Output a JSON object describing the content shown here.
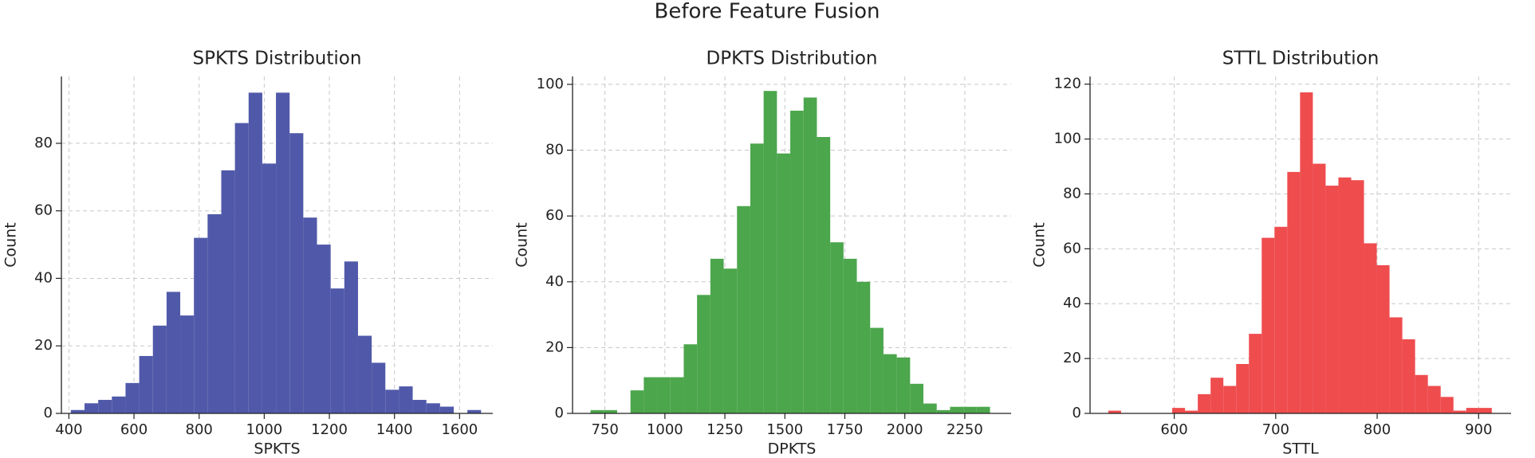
{
  "title": "Before Feature Fusion",
  "chart_data": [
    {
      "type": "histogram",
      "title": "SPKTS Distribution",
      "xlabel": "SPKTS",
      "ylabel": "Count",
      "color": "#5059a9",
      "grid": true,
      "bins": [
        406,
        448,
        490,
        532,
        574,
        616,
        658,
        700,
        742,
        784,
        826,
        868,
        910,
        952,
        994,
        1036,
        1078,
        1120,
        1162,
        1204,
        1246,
        1288,
        1330,
        1372,
        1414,
        1456,
        1498,
        1540,
        1582,
        1624,
        1666
      ],
      "values": [
        1,
        3,
        4,
        5,
        9,
        17,
        26,
        36,
        29,
        52,
        59,
        72,
        86,
        95,
        74,
        95,
        83,
        58,
        50,
        37,
        45,
        23,
        15,
        7,
        8,
        4,
        3,
        2,
        0,
        1
      ],
      "xlim": [
        377,
        1702
      ],
      "ylim": [
        0,
        99.8
      ],
      "xticks": [
        400,
        600,
        800,
        1000,
        1200,
        1400,
        1600
      ],
      "yticks": [
        0,
        20,
        40,
        60,
        80
      ]
    },
    {
      "type": "histogram",
      "title": "DPKTS Distribution",
      "xlabel": "DPKTS",
      "ylabel": "Count",
      "color": "#4ca64c",
      "grid": true,
      "bins": [
        690,
        745.5,
        801,
        856.5,
        912,
        967.5,
        1023,
        1078.5,
        1134,
        1189.5,
        1245,
        1300.5,
        1356,
        1411.5,
        1467,
        1522.5,
        1578,
        1633.5,
        1689,
        1744.5,
        1800,
        1855.5,
        1911,
        1966.5,
        2022,
        2077.5,
        2133,
        2188.5,
        2244,
        2299.5,
        2355
      ],
      "values": [
        1,
        1,
        0,
        7,
        11,
        11,
        11,
        21,
        36,
        47,
        44,
        63,
        82,
        98,
        79,
        92,
        96,
        84,
        52,
        47,
        40,
        26,
        18,
        17,
        9,
        3,
        1,
        2,
        2,
        2
      ],
      "xlim": [
        615,
        2443
      ],
      "ylim": [
        0,
        102.4
      ],
      "xticks": [
        750,
        1000,
        1250,
        1500,
        1750,
        2000,
        2250
      ],
      "yticks": [
        0,
        20,
        40,
        60,
        80,
        100
      ]
    },
    {
      "type": "histogram",
      "title": "STTL Distribution",
      "xlabel": "STTL",
      "ylabel": "Count",
      "color": "#ef4c4e",
      "grid": true,
      "bins": [
        535,
        547.6,
        560.2,
        572.8,
        585.4,
        598,
        610.6,
        623.2,
        635.8,
        648.4,
        661,
        673.6,
        686.2,
        698.8,
        711.4,
        724,
        736.6,
        749.2,
        761.8,
        774.4,
        787,
        799.6,
        812.2,
        824.8,
        837.4,
        850,
        862.6,
        875.2,
        887.8,
        900.4,
        913
      ],
      "values": [
        1,
        0,
        0,
        0,
        0,
        2,
        1,
        7,
        13,
        10,
        18,
        29,
        64,
        68,
        88,
        117,
        91,
        83,
        86,
        85,
        62,
        54,
        35,
        27,
        14,
        10,
        6,
        1,
        2,
        2
      ],
      "xlim": [
        517,
        932
      ],
      "ylim": [
        0,
        122.8
      ],
      "xticks": [
        600,
        700,
        800,
        900
      ],
      "yticks": [
        0,
        20,
        40,
        60,
        80,
        100,
        120
      ]
    }
  ]
}
